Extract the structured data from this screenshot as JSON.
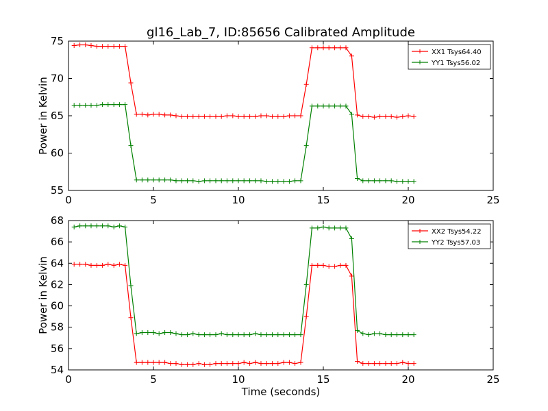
{
  "figure": {
    "title": "gl16_Lab_7, ID:85656 Calibrated Amplitude",
    "background": "#ffffff"
  },
  "chart_data": [
    {
      "type": "line",
      "title": "gl16_Lab_7, ID:85656 Calibrated Amplitude",
      "xlabel": "",
      "ylabel": "Power in Kelvin",
      "xlim": [
        0,
        25
      ],
      "ylim": [
        55,
        75
      ],
      "xticks": [
        0,
        5,
        10,
        15,
        20,
        25
      ],
      "yticks": [
        55,
        60,
        65,
        70,
        75
      ],
      "grid": false,
      "legend": "top-right",
      "marker": "+",
      "x": [
        0.33,
        0.67,
        1.0,
        1.33,
        1.67,
        2.0,
        2.33,
        2.67,
        3.0,
        3.33,
        3.67,
        4.0,
        4.33,
        4.67,
        5.0,
        5.33,
        5.67,
        6.0,
        6.33,
        6.67,
        7.0,
        7.33,
        7.67,
        8.0,
        8.33,
        8.67,
        9.0,
        9.33,
        9.67,
        10.0,
        10.33,
        10.67,
        11.0,
        11.33,
        11.67,
        12.0,
        12.33,
        12.67,
        13.0,
        13.33,
        13.67,
        14.0,
        14.33,
        14.67,
        15.0,
        15.33,
        15.67,
        16.0,
        16.33,
        16.67,
        17.0,
        17.33,
        17.67,
        18.0,
        18.33,
        18.67,
        19.0,
        19.33,
        19.67,
        20.0,
        20.33
      ],
      "series": [
        {
          "name": "XX1 Tsys64.40",
          "color": "#ff0000",
          "values": [
            74.4,
            74.5,
            74.5,
            74.4,
            74.3,
            74.3,
            74.3,
            74.3,
            74.3,
            74.3,
            69.4,
            65.2,
            65.2,
            65.1,
            65.2,
            65.2,
            65.1,
            65.1,
            65.0,
            64.9,
            64.9,
            64.9,
            64.9,
            64.9,
            64.9,
            64.9,
            64.9,
            65.0,
            65.0,
            64.9,
            64.9,
            64.9,
            64.9,
            65.0,
            65.0,
            64.9,
            64.9,
            64.9,
            65.0,
            65.0,
            65.0,
            69.2,
            74.1,
            74.1,
            74.1,
            74.1,
            74.1,
            74.1,
            74.1,
            73.0,
            65.1,
            64.9,
            64.9,
            64.8,
            64.9,
            64.9,
            64.9,
            64.8,
            64.9,
            65.0,
            64.9
          ]
        },
        {
          "name": "YY1 Tsys56.02",
          "color": "#008000",
          "values": [
            66.4,
            66.4,
            66.4,
            66.4,
            66.4,
            66.5,
            66.5,
            66.5,
            66.5,
            66.5,
            61.0,
            56.4,
            56.4,
            56.4,
            56.4,
            56.4,
            56.4,
            56.4,
            56.3,
            56.3,
            56.3,
            56.3,
            56.2,
            56.3,
            56.3,
            56.3,
            56.3,
            56.3,
            56.3,
            56.3,
            56.3,
            56.3,
            56.3,
            56.3,
            56.2,
            56.2,
            56.2,
            56.2,
            56.2,
            56.3,
            56.3,
            61.0,
            66.3,
            66.3,
            66.3,
            66.3,
            66.3,
            66.3,
            66.3,
            65.2,
            56.6,
            56.3,
            56.3,
            56.3,
            56.3,
            56.3,
            56.3,
            56.2,
            56.2,
            56.2,
            56.2
          ]
        }
      ]
    },
    {
      "type": "line",
      "title": "",
      "xlabel": "Time (seconds)",
      "ylabel": "Power in Kelvin",
      "xlim": [
        0,
        25
      ],
      "ylim": [
        54,
        68
      ],
      "xticks": [
        0,
        5,
        10,
        15,
        20,
        25
      ],
      "yticks": [
        54,
        56,
        58,
        60,
        62,
        64,
        66,
        68
      ],
      "grid": false,
      "legend": "top-right",
      "marker": "+",
      "x": [
        0.33,
        0.67,
        1.0,
        1.33,
        1.67,
        2.0,
        2.33,
        2.67,
        3.0,
        3.33,
        3.67,
        4.0,
        4.33,
        4.67,
        5.0,
        5.33,
        5.67,
        6.0,
        6.33,
        6.67,
        7.0,
        7.33,
        7.67,
        8.0,
        8.33,
        8.67,
        9.0,
        9.33,
        9.67,
        10.0,
        10.33,
        10.67,
        11.0,
        11.33,
        11.67,
        12.0,
        12.33,
        12.67,
        13.0,
        13.33,
        13.67,
        14.0,
        14.33,
        14.67,
        15.0,
        15.33,
        15.67,
        16.0,
        16.33,
        16.67,
        17.0,
        17.33,
        17.67,
        18.0,
        18.33,
        18.67,
        19.0,
        19.33,
        19.67,
        20.0,
        20.33
      ],
      "series": [
        {
          "name": "XX2 Tsys54.22",
          "color": "#ff0000",
          "values": [
            63.9,
            63.9,
            63.9,
            63.8,
            63.8,
            63.8,
            63.9,
            63.8,
            63.9,
            63.8,
            58.9,
            54.7,
            54.7,
            54.7,
            54.7,
            54.7,
            54.7,
            54.6,
            54.6,
            54.5,
            54.5,
            54.5,
            54.6,
            54.5,
            54.5,
            54.6,
            54.6,
            54.6,
            54.6,
            54.6,
            54.7,
            54.6,
            54.7,
            54.6,
            54.6,
            54.6,
            54.6,
            54.7,
            54.7,
            54.6,
            54.7,
            59.0,
            63.8,
            63.8,
            63.8,
            63.7,
            63.7,
            63.8,
            63.8,
            62.8,
            54.8,
            54.6,
            54.6,
            54.6,
            54.6,
            54.6,
            54.6,
            54.6,
            54.7,
            54.6,
            54.6
          ]
        },
        {
          "name": "YY2 Tsys57.03",
          "color": "#008000",
          "values": [
            67.4,
            67.5,
            67.5,
            67.5,
            67.5,
            67.5,
            67.5,
            67.4,
            67.5,
            67.4,
            61.9,
            57.4,
            57.5,
            57.5,
            57.5,
            57.4,
            57.5,
            57.5,
            57.4,
            57.3,
            57.3,
            57.4,
            57.3,
            57.3,
            57.3,
            57.3,
            57.4,
            57.3,
            57.3,
            57.3,
            57.3,
            57.3,
            57.4,
            57.3,
            57.3,
            57.3,
            57.3,
            57.3,
            57.3,
            57.3,
            57.3,
            62.0,
            67.3,
            67.3,
            67.4,
            67.3,
            67.3,
            67.3,
            67.3,
            66.3,
            57.7,
            57.4,
            57.3,
            57.4,
            57.4,
            57.3,
            57.3,
            57.3,
            57.3,
            57.3,
            57.3
          ]
        }
      ]
    }
  ]
}
